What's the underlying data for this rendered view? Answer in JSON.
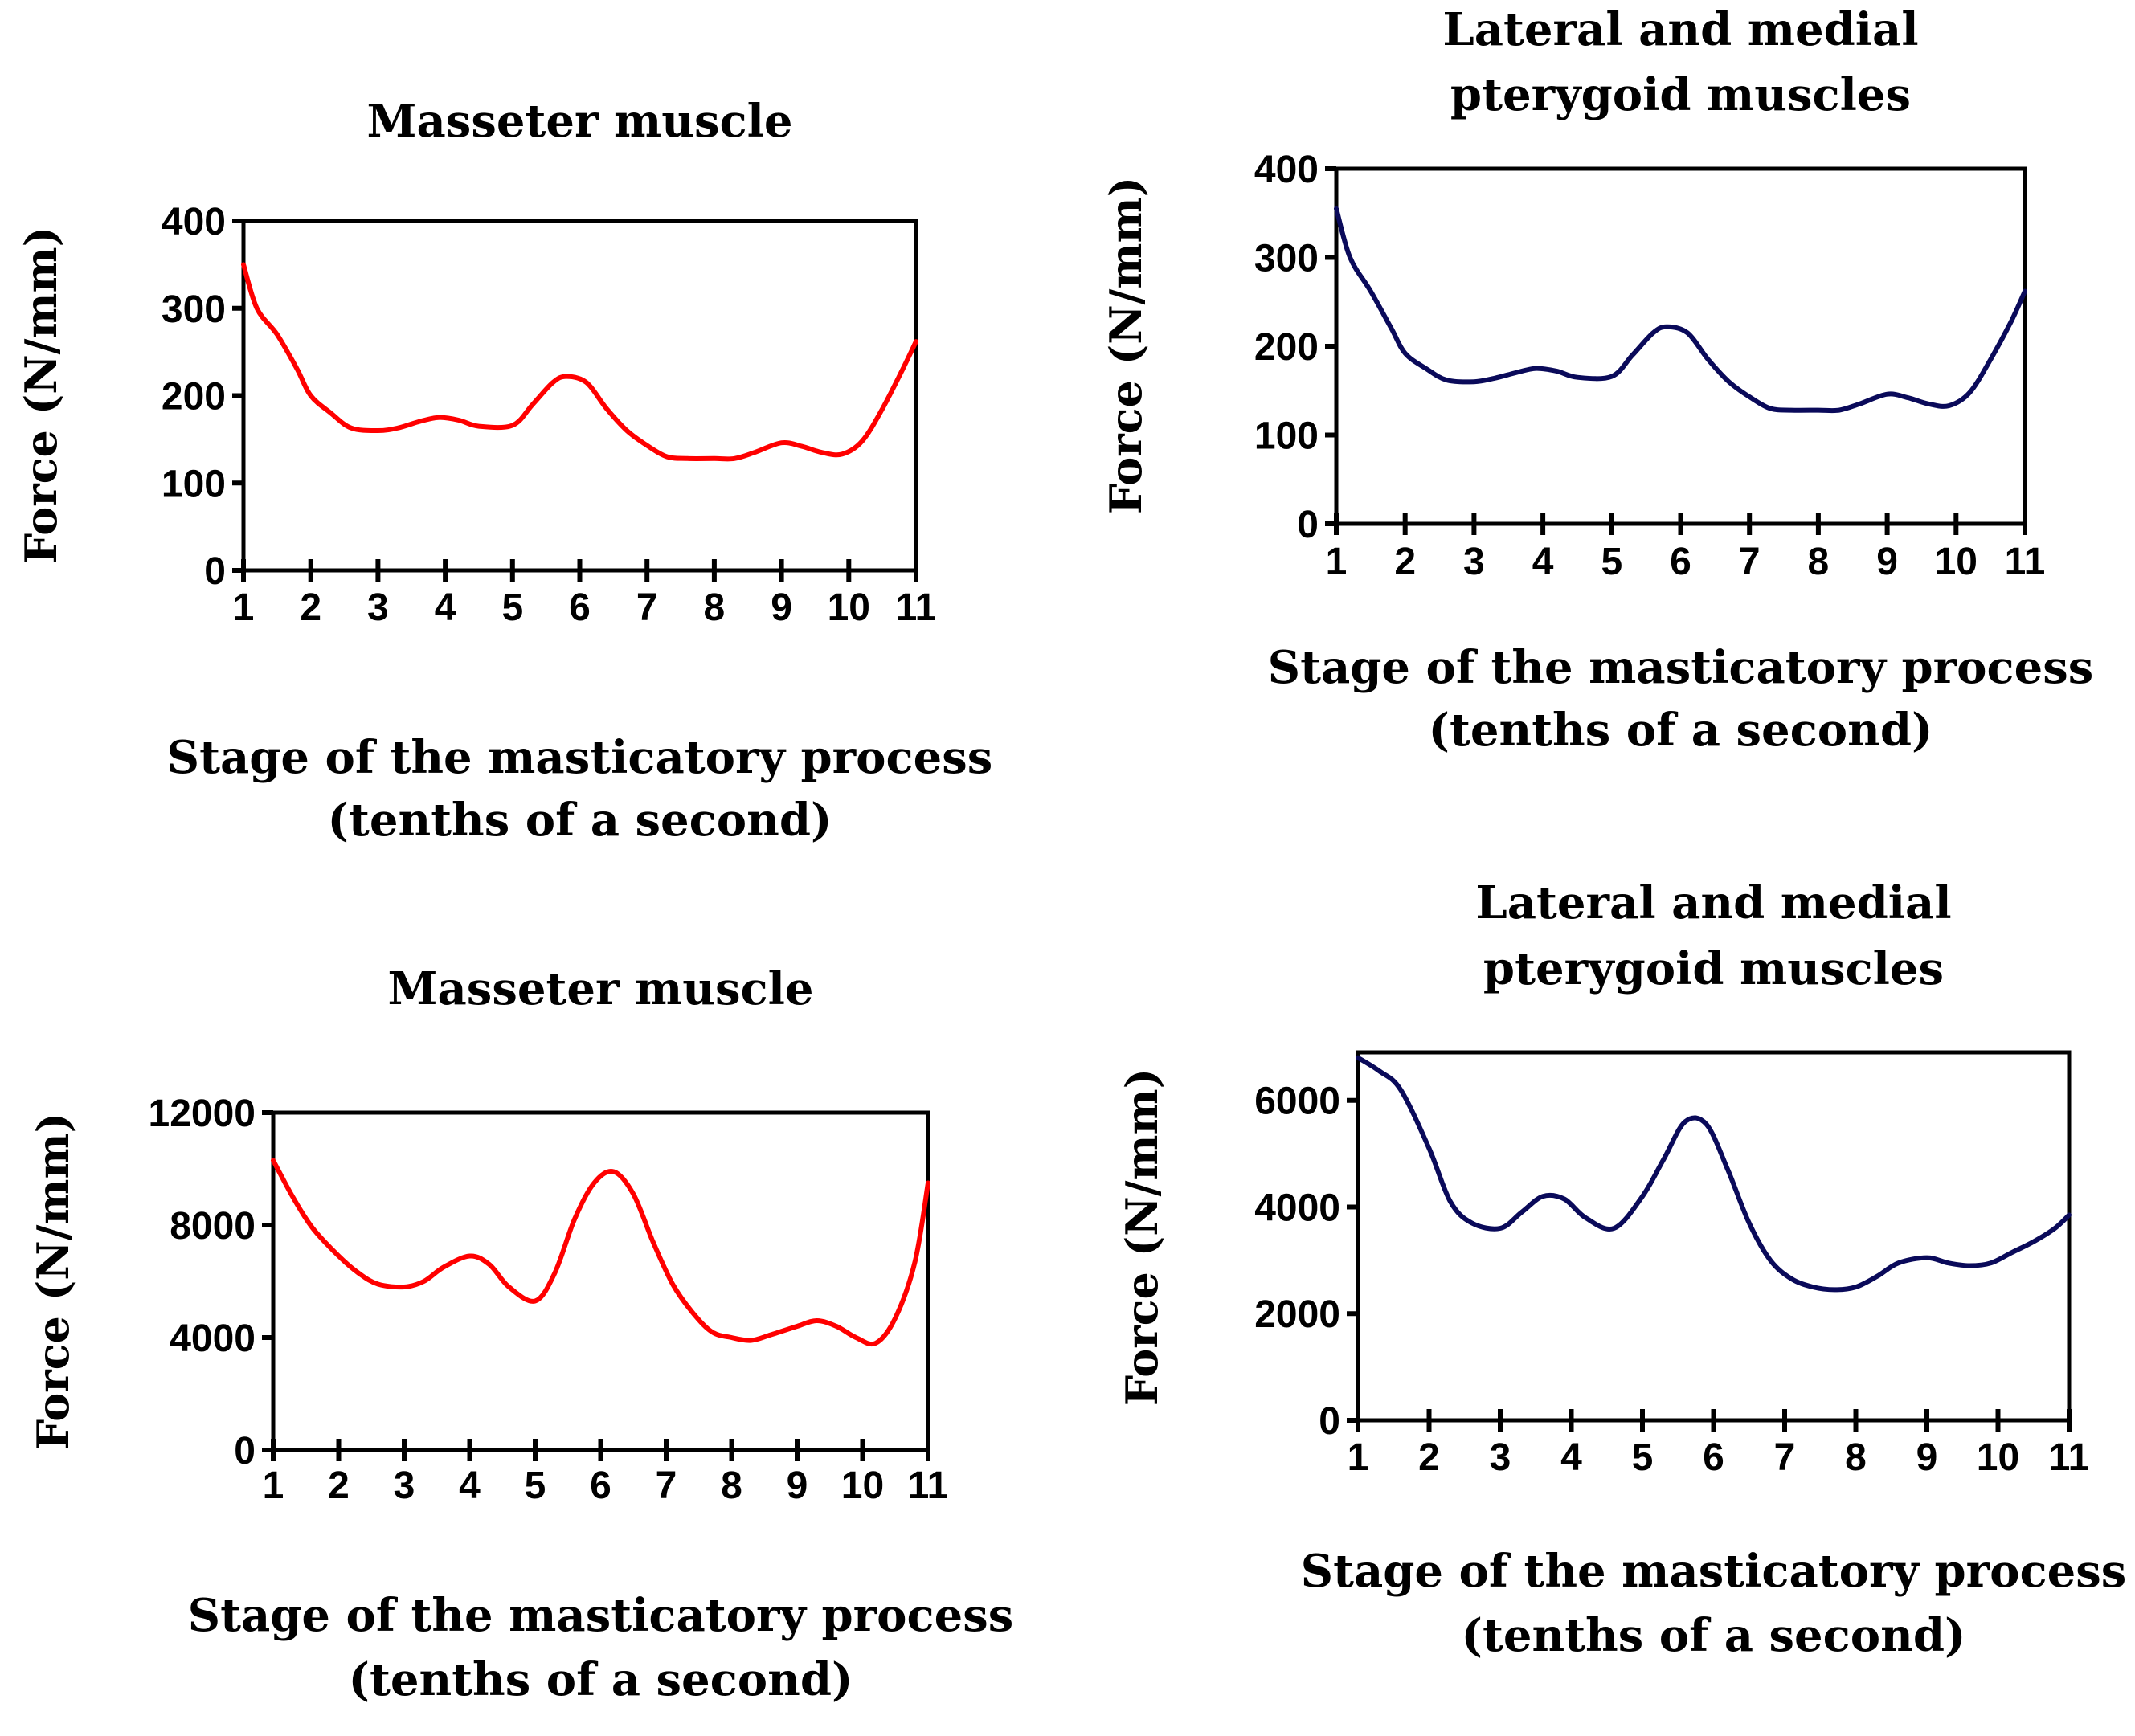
{
  "chart_data": [
    {
      "type": "line",
      "title_lines": [
        "Masseter muscle"
      ],
      "xlabel_lines": [
        "Stage of the masticatory process",
        "(tenths of a second)"
      ],
      "ylabel": "Force (N/mm)",
      "x_ticks": [
        "1",
        "2",
        "3",
        "4",
        "5",
        "6",
        "7",
        "8",
        "9",
        "10",
        "11"
      ],
      "y_ticks": [
        "0",
        "100",
        "200",
        "300",
        "400"
      ],
      "xlim": [
        1,
        11
      ],
      "ylim": [
        0,
        400
      ],
      "color": "#ff0000",
      "series": [
        {
          "name": "Masseter muscle",
          "x": [
            1,
            1.2,
            1.5,
            1.8,
            2,
            2.3,
            2.6,
            3,
            3.3,
            3.6,
            3.9,
            4.2,
            4.5,
            5,
            5.3,
            5.6,
            5.8,
            6.1,
            6.4,
            6.7,
            7,
            7.3,
            7.6,
            8,
            8.3,
            8.6,
            9,
            9.3,
            9.6,
            9.9,
            10.2,
            10.5,
            10.8,
            11
          ],
          "values": [
            350,
            300,
            270,
            230,
            200,
            180,
            163,
            160,
            163,
            170,
            175,
            172,
            165,
            166,
            190,
            215,
            222,
            215,
            185,
            160,
            143,
            130,
            128,
            128,
            128,
            135,
            146,
            142,
            135,
            133,
            148,
            185,
            230,
            262
          ]
        }
      ]
    },
    {
      "type": "line",
      "title_lines": [
        "Lateral and medial",
        "pterygoid muscles"
      ],
      "xlabel_lines": [
        "Stage of the masticatory process",
        "(tenths of a second)"
      ],
      "ylabel": "Force (N/mm)",
      "x_ticks": [
        "1",
        "2",
        "3",
        "4",
        "5",
        "6",
        "7",
        "8",
        "9",
        "10",
        "11"
      ],
      "y_ticks": [
        "0",
        "100",
        "200",
        "300",
        "400"
      ],
      "xlim": [
        1,
        11
      ],
      "ylim": [
        0,
        400
      ],
      "color": "#0a0a5a",
      "series": [
        {
          "name": "Lateral and medial pterygoid muscles",
          "x": [
            1,
            1.2,
            1.5,
            1.8,
            2,
            2.3,
            2.6,
            3,
            3.3,
            3.6,
            3.9,
            4.2,
            4.5,
            5,
            5.3,
            5.6,
            5.8,
            6.1,
            6.4,
            6.7,
            7,
            7.3,
            7.6,
            8,
            8.3,
            8.6,
            9,
            9.3,
            9.6,
            9.9,
            10.2,
            10.5,
            10.8,
            11
          ],
          "values": [
            355,
            300,
            262,
            220,
            192,
            175,
            162,
            160,
            164,
            170,
            175,
            172,
            165,
            166,
            190,
            215,
            222,
            215,
            185,
            160,
            143,
            130,
            128,
            128,
            128,
            135,
            146,
            142,
            135,
            133,
            148,
            185,
            228,
            262
          ]
        }
      ]
    },
    {
      "type": "line",
      "title_lines": [
        "Masseter muscle"
      ],
      "xlabel_lines": [
        "Stage of the masticatory process",
        "(tenths of a second)"
      ],
      "ylabel": "Force (N/mm)",
      "x_ticks": [
        "1",
        "2",
        "3",
        "4",
        "5",
        "6",
        "7",
        "8",
        "9",
        "10",
        "11"
      ],
      "y_ticks": [
        "0",
        "4000",
        "8000",
        "12000"
      ],
      "xlim": [
        1,
        11
      ],
      "ylim": [
        0,
        12000
      ],
      "color": "#ff0000",
      "series": [
        {
          "name": "Masseter muscle",
          "x": [
            1,
            1.3,
            1.6,
            2,
            2.3,
            2.6,
            3,
            3.3,
            3.6,
            4,
            4.3,
            4.6,
            5,
            5.3,
            5.6,
            5.9,
            6.2,
            6.5,
            6.8,
            7.1,
            7.4,
            7.7,
            8,
            8.3,
            8.6,
            9,
            9.3,
            9.6,
            9.9,
            10.2,
            10.5,
            10.8,
            11
          ],
          "values": [
            10300,
            9000,
            7900,
            6900,
            6300,
            5900,
            5800,
            6000,
            6500,
            6900,
            6600,
            5800,
            5300,
            6300,
            8200,
            9500,
            9900,
            9100,
            7400,
            5900,
            4900,
            4200,
            4000,
            3900,
            4100,
            4400,
            4600,
            4400,
            4000,
            3800,
            4700,
            6700,
            9500
          ]
        }
      ]
    },
    {
      "type": "line",
      "title_lines": [
        "Lateral and medial",
        "pterygoid muscles"
      ],
      "xlabel_lines": [
        "Stage of the masticatory process",
        "(tenths of a second)"
      ],
      "ylabel": "Force (N/mm)",
      "x_ticks": [
        "1",
        "2",
        "3",
        "4",
        "5",
        "6",
        "7",
        "8",
        "9",
        "10",
        "11"
      ],
      "y_ticks": [
        "0",
        "2000",
        "4000",
        "6000"
      ],
      "xlim": [
        1,
        11
      ],
      "ylim": [
        0,
        6900
      ],
      "color": "#0a0a5a",
      "series": [
        {
          "name": "Lateral and medial pterygoid muscles",
          "x": [
            1,
            1.3,
            1.6,
            2,
            2.3,
            2.6,
            3,
            3.3,
            3.6,
            3.9,
            4.2,
            4.6,
            5,
            5.3,
            5.6,
            5.9,
            6.2,
            6.5,
            6.8,
            7.1,
            7.4,
            7.7,
            8,
            8.3,
            8.6,
            9,
            9.3,
            9.6,
            9.9,
            10.2,
            10.5,
            10.8,
            11
          ],
          "values": [
            6800,
            6550,
            6200,
            5100,
            4100,
            3700,
            3600,
            3900,
            4200,
            4150,
            3800,
            3600,
            4200,
            4900,
            5600,
            5550,
            4700,
            3700,
            3000,
            2650,
            2500,
            2450,
            2500,
            2700,
            2950,
            3050,
            2950,
            2900,
            2950,
            3150,
            3350,
            3600,
            3850
          ]
        }
      ]
    }
  ]
}
